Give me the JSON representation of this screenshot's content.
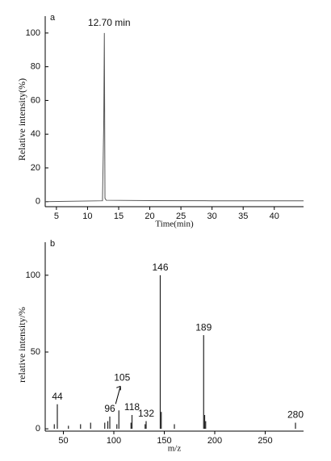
{
  "chart_data": [
    {
      "type": "line",
      "panel_label": "a",
      "annotation": "12.70 min",
      "x_label": "Time(min)",
      "y_label": "Relative intensity(%)",
      "x": [
        3.2,
        12.4,
        12.6,
        12.7,
        12.8,
        13.0,
        20,
        30,
        44.7
      ],
      "values": [
        0,
        0.5,
        45,
        100,
        2,
        0.8,
        0.6,
        0.5,
        0.5
      ],
      "color": "#555555",
      "xlim": [
        3.2,
        44.7
      ],
      "ylim": [
        -3,
        110
      ],
      "xticks": [
        5,
        10,
        15,
        20,
        25,
        30,
        35,
        40
      ],
      "yticks": [
        0,
        20,
        40,
        60,
        80,
        100
      ]
    },
    {
      "type": "bar",
      "panel_label": "b",
      "x_label": "m/z",
      "y_label": "relative intensity/%",
      "x": [
        41,
        44,
        55,
        67,
        77,
        91,
        94,
        96,
        103,
        105,
        117,
        118,
        131,
        132,
        146,
        147,
        160,
        189,
        190,
        191,
        280
      ],
      "values": [
        3,
        16,
        2,
        3,
        4,
        4,
        5,
        8,
        3,
        12,
        4,
        9,
        3,
        5,
        100,
        11,
        3,
        61,
        9,
        5,
        4
      ],
      "peak_labels": [
        null,
        "44",
        null,
        null,
        null,
        null,
        null,
        "96",
        null,
        "105",
        null,
        "118",
        null,
        "132",
        "146",
        null,
        null,
        "189",
        null,
        null,
        "280"
      ],
      "color": "#222222",
      "xlim": [
        32,
        288
      ],
      "ylim": [
        -1.5,
        121.5
      ],
      "xticks": [
        50,
        100,
        150,
        200,
        250
      ],
      "yticks": [
        0,
        50,
        100
      ]
    }
  ]
}
